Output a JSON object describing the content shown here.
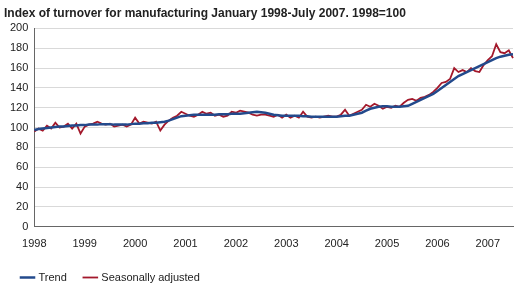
{
  "chart_data": {
    "type": "line",
    "title": "Index of turnover for manufacturing January 1998-July 2007. 1998=100",
    "categories": [
      "1998",
      null,
      null,
      null,
      null,
      null,
      null,
      null,
      null,
      null,
      null,
      null,
      "1999",
      null,
      null,
      null,
      null,
      null,
      null,
      null,
      null,
      null,
      null,
      null,
      "2000",
      null,
      null,
      null,
      null,
      null,
      null,
      null,
      null,
      null,
      null,
      null,
      "2001",
      null,
      null,
      null,
      null,
      null,
      null,
      null,
      null,
      null,
      null,
      null,
      "2002",
      null,
      null,
      null,
      null,
      null,
      null,
      null,
      null,
      null,
      null,
      null,
      "2003",
      null,
      null,
      null,
      null,
      null,
      null,
      null,
      null,
      null,
      null,
      null,
      "2004",
      null,
      null,
      null,
      null,
      null,
      null,
      null,
      null,
      null,
      null,
      null,
      "2005",
      null,
      null,
      null,
      null,
      null,
      null,
      null,
      null,
      null,
      null,
      null,
      "2006",
      null,
      null,
      null,
      null,
      null,
      null,
      null,
      null,
      null,
      null,
      null,
      "2007",
      null,
      null,
      null,
      null,
      null,
      null
    ],
    "series": [
      {
        "name": "Trend",
        "color": "#234a8c",
        "values": [
          97.5,
          98.5,
          99,
          99.5,
          100,
          100.5,
          101,
          101,
          101.5,
          102,
          102,
          102.5,
          102.5,
          103,
          103,
          103,
          103.5,
          103.5,
          103.5,
          103,
          103,
          103,
          103,
          103.5,
          104,
          104,
          104.5,
          104.5,
          105,
          105,
          105.5,
          106,
          107,
          108.5,
          110,
          111.5,
          112,
          112.5,
          113,
          113,
          113,
          113,
          113,
          113,
          113.5,
          113.5,
          113.5,
          114,
          114,
          114,
          114.5,
          115,
          115.5,
          116,
          115.5,
          115,
          114,
          113,
          112.5,
          112,
          112,
          112,
          112,
          112,
          111.5,
          111.5,
          111,
          111,
          111,
          111,
          111,
          111,
          111,
          111.5,
          112,
          112,
          113,
          114,
          115,
          117,
          119,
          120,
          121,
          121.5,
          121.5,
          121,
          121,
          121,
          121.5,
          122,
          124,
          126,
          128,
          130,
          132,
          134,
          137,
          140,
          143,
          146,
          149,
          152,
          154,
          156,
          158,
          160,
          162,
          164,
          166,
          168,
          170,
          171.5,
          172.5,
          173.5,
          174
        ]
      },
      {
        "name": "Seasonally adjusted",
        "color": "#a3182b",
        "values": [
          96,
          99,
          97,
          102,
          99,
          105,
          100,
          101,
          104,
          99,
          104,
          94,
          101,
          103,
          104,
          106,
          104,
          103,
          104,
          101,
          102,
          103,
          101,
          103,
          110,
          104,
          106,
          105,
          104,
          106,
          97,
          103,
          107,
          110,
          112,
          116,
          114,
          112,
          111,
          113,
          116,
          114,
          115,
          112,
          113,
          111,
          112,
          116,
          115,
          117,
          116,
          115,
          113,
          112,
          113,
          113,
          112,
          111,
          113,
          110,
          113,
          110,
          112,
          110,
          116,
          111,
          110,
          111,
          110,
          111,
          112,
          111,
          111,
          113,
          118,
          112,
          114,
          116,
          118,
          123,
          121,
          124,
          122,
          119,
          121,
          120,
          122,
          121,
          125,
          128,
          129,
          127,
          130,
          131,
          133,
          136,
          140,
          145,
          146,
          149,
          160,
          156,
          158,
          156,
          160,
          157,
          156,
          163,
          168,
          172,
          184,
          176,
          175,
          178,
          170
        ]
      }
    ],
    "ylim": [
      0,
      200
    ],
    "yticks": [
      0,
      20,
      40,
      60,
      80,
      100,
      120,
      140,
      160,
      180,
      200
    ],
    "grid": true,
    "legend": "bottom"
  }
}
